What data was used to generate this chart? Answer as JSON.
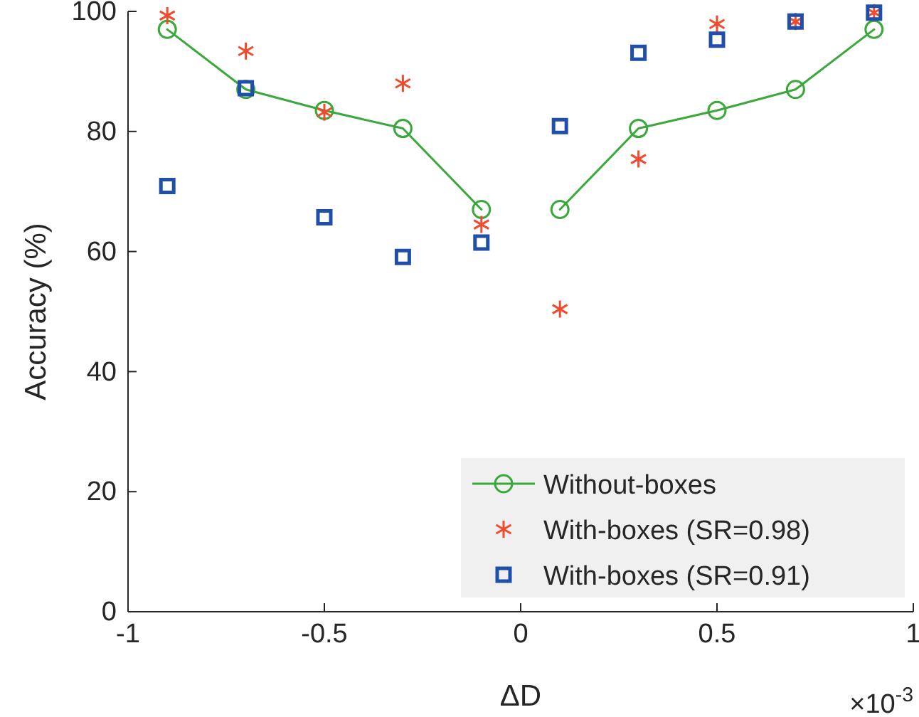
{
  "chart_data": {
    "type": "scatter",
    "xlabel": "ΔD",
    "ylabel": "Accuracy (%)",
    "xlim": [
      -1,
      1
    ],
    "xticks": [
      -1,
      -0.5,
      0,
      0.5,
      1
    ],
    "ylim": [
      0,
      100
    ],
    "yticks": [
      0,
      20,
      40,
      60,
      80,
      100
    ],
    "legend": "bottom right",
    "grid": false,
    "annotations": [
      "×10$^{-3}$"
    ],
    "series": [
      {
        "name": "Without-boxes",
        "type": "line",
        "marker": "circle",
        "line_style": "solid",
        "color": "#3aa83a",
        "x": [
          -0.9,
          -0.7,
          -0.5,
          -0.3,
          -0.1,
          0,
          0.1,
          0.3,
          0.5,
          0.7,
          0.9
        ],
        "values": [
          97,
          87,
          83.5,
          80.5,
          67,
          null,
          67,
          80.5,
          83.5,
          87,
          97
        ]
      },
      {
        "name": "With-boxes (SR=0.98)",
        "marker": "cross",
        "color": "#f04a30",
        "x": [
          -0.9,
          -0.7,
          -0.5,
          -0.3,
          -0.1,
          0.1,
          0.3,
          0.5,
          0.7,
          0.9
        ],
        "values": [
          99.3,
          93.4,
          83.2,
          88,
          64.5,
          50.4,
          75.4,
          97.9,
          98.3,
          99.8
        ]
      },
      {
        "name": "With-boxes (SR=0.91)",
        "marker": "square",
        "color": "#1f4fa8",
        "x": [
          -0.9,
          -0.7,
          -0.5,
          -0.3,
          -0.1,
          0.1,
          0.3,
          0.5,
          0.7,
          0.9
        ],
        "values": [
          70.9,
          87.2,
          65.7,
          59.1,
          61.5,
          80.9,
          93.1,
          95.3,
          98.3,
          99.8
        ]
      }
    ]
  }
}
